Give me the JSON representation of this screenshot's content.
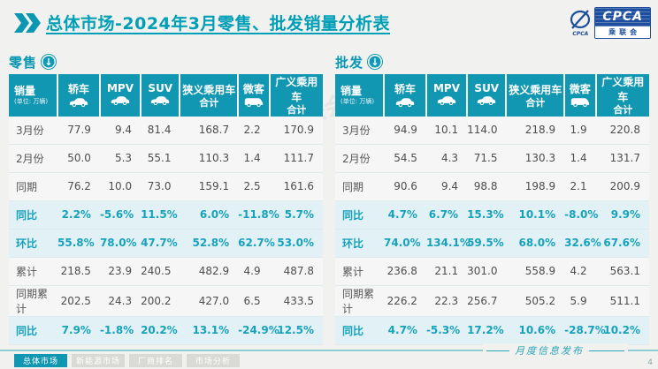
{
  "page": {
    "title": "总体市场-2024年3月零售、批发销量分析表",
    "footer_note": "月度信息发布",
    "page_number": "4",
    "watermark": "CPCA乘联会"
  },
  "logo": {
    "icon_label": "CPCA",
    "text": "CPCA",
    "subtext": "乘联会"
  },
  "colors": {
    "accent_teal": "#1197b2",
    "title_teal": "#009fb8",
    "highlight_bg": "#e2f1f6",
    "highlight_text": "#17a2bc",
    "logo_blue": "#1d4f9e",
    "tab_inactive": "#d9d9d6",
    "page_bg": "#f1f1ef"
  },
  "tabs": [
    {
      "label": "总体市场",
      "active": true
    },
    {
      "label": "新能源市场",
      "active": false
    },
    {
      "label": "厂商排名",
      "active": false
    },
    {
      "label": "市场分析",
      "active": false
    }
  ],
  "tables": {
    "retail": {
      "section_label": "零售",
      "unit_title": "销量",
      "unit_sub": "(单位: 万辆)",
      "columns": [
        {
          "label": "轿车",
          "icon": "sedan-icon"
        },
        {
          "label": "MPV",
          "icon": "mpv-icon"
        },
        {
          "label": "SUV",
          "icon": "suv-icon"
        },
        {
          "label": "狭义乘用车",
          "label2": "合计"
        },
        {
          "label": "微客",
          "icon": "minivan-icon"
        },
        {
          "label": "广义乘用车",
          "label2": "合计"
        }
      ],
      "rows": [
        {
          "label": "3月份",
          "highlight": false,
          "values": [
            "77.9",
            "9.4",
            "81.4",
            "168.7",
            "2.2",
            "170.9"
          ]
        },
        {
          "label": "2月份",
          "highlight": false,
          "values": [
            "50.0",
            "5.3",
            "55.1",
            "110.3",
            "1.4",
            "111.7"
          ]
        },
        {
          "label": "同期",
          "highlight": false,
          "values": [
            "76.2",
            "10.0",
            "73.0",
            "159.1",
            "2.5",
            "161.6"
          ]
        },
        {
          "label": "同比",
          "highlight": true,
          "values": [
            "2.2%",
            "-5.6%",
            "11.5%",
            "6.0%",
            "-11.8%",
            "5.7%"
          ]
        },
        {
          "label": "环比",
          "highlight": true,
          "values": [
            "55.8%",
            "78.0%",
            "47.7%",
            "52.8%",
            "62.7%",
            "53.0%"
          ]
        },
        {
          "label": "累计",
          "highlight": false,
          "values": [
            "218.5",
            "23.9",
            "240.5",
            "482.9",
            "4.9",
            "487.8"
          ]
        },
        {
          "label": "同期累计",
          "highlight": false,
          "values": [
            "202.5",
            "24.3",
            "200.2",
            "427.0",
            "6.5",
            "433.5"
          ]
        },
        {
          "label": "同比",
          "highlight": true,
          "values": [
            "7.9%",
            "-1.8%",
            "20.2%",
            "13.1%",
            "-24.9%",
            "12.5%"
          ]
        }
      ]
    },
    "wholesale": {
      "section_label": "批发",
      "unit_title": "销量",
      "unit_sub": "(单位: 万辆)",
      "columns": [
        {
          "label": "轿车",
          "icon": "sedan-icon"
        },
        {
          "label": "MPV",
          "icon": "mpv-icon"
        },
        {
          "label": "SUV",
          "icon": "suv-icon"
        },
        {
          "label": "狭义乘用车",
          "label2": "合计"
        },
        {
          "label": "微客",
          "icon": "minivan-icon"
        },
        {
          "label": "广义乘用车",
          "label2": "合计"
        }
      ],
      "rows": [
        {
          "label": "3月份",
          "highlight": false,
          "values": [
            "94.9",
            "10.1",
            "114.0",
            "218.9",
            "1.9",
            "220.8"
          ]
        },
        {
          "label": "2月份",
          "highlight": false,
          "values": [
            "54.5",
            "4.3",
            "71.5",
            "130.3",
            "1.4",
            "131.7"
          ]
        },
        {
          "label": "同期",
          "highlight": false,
          "values": [
            "90.6",
            "9.4",
            "98.8",
            "198.9",
            "2.1",
            "200.9"
          ]
        },
        {
          "label": "同比",
          "highlight": true,
          "values": [
            "4.7%",
            "6.7%",
            "15.3%",
            "10.1%",
            "-8.0%",
            "9.9%"
          ]
        },
        {
          "label": "环比",
          "highlight": true,
          "values": [
            "74.0%",
            "134.1%",
            "59.5%",
            "68.0%",
            "32.6%",
            "67.6%"
          ]
        },
        {
          "label": "累计",
          "highlight": false,
          "values": [
            "236.8",
            "21.1",
            "301.0",
            "558.9",
            "4.2",
            "563.1"
          ]
        },
        {
          "label": "同期累计",
          "highlight": false,
          "values": [
            "226.2",
            "22.3",
            "256.7",
            "505.2",
            "5.9",
            "511.1"
          ]
        },
        {
          "label": "同比",
          "highlight": true,
          "values": [
            "4.7%",
            "-5.3%",
            "17.2%",
            "10.6%",
            "-28.7%",
            "10.2%"
          ]
        }
      ]
    }
  }
}
